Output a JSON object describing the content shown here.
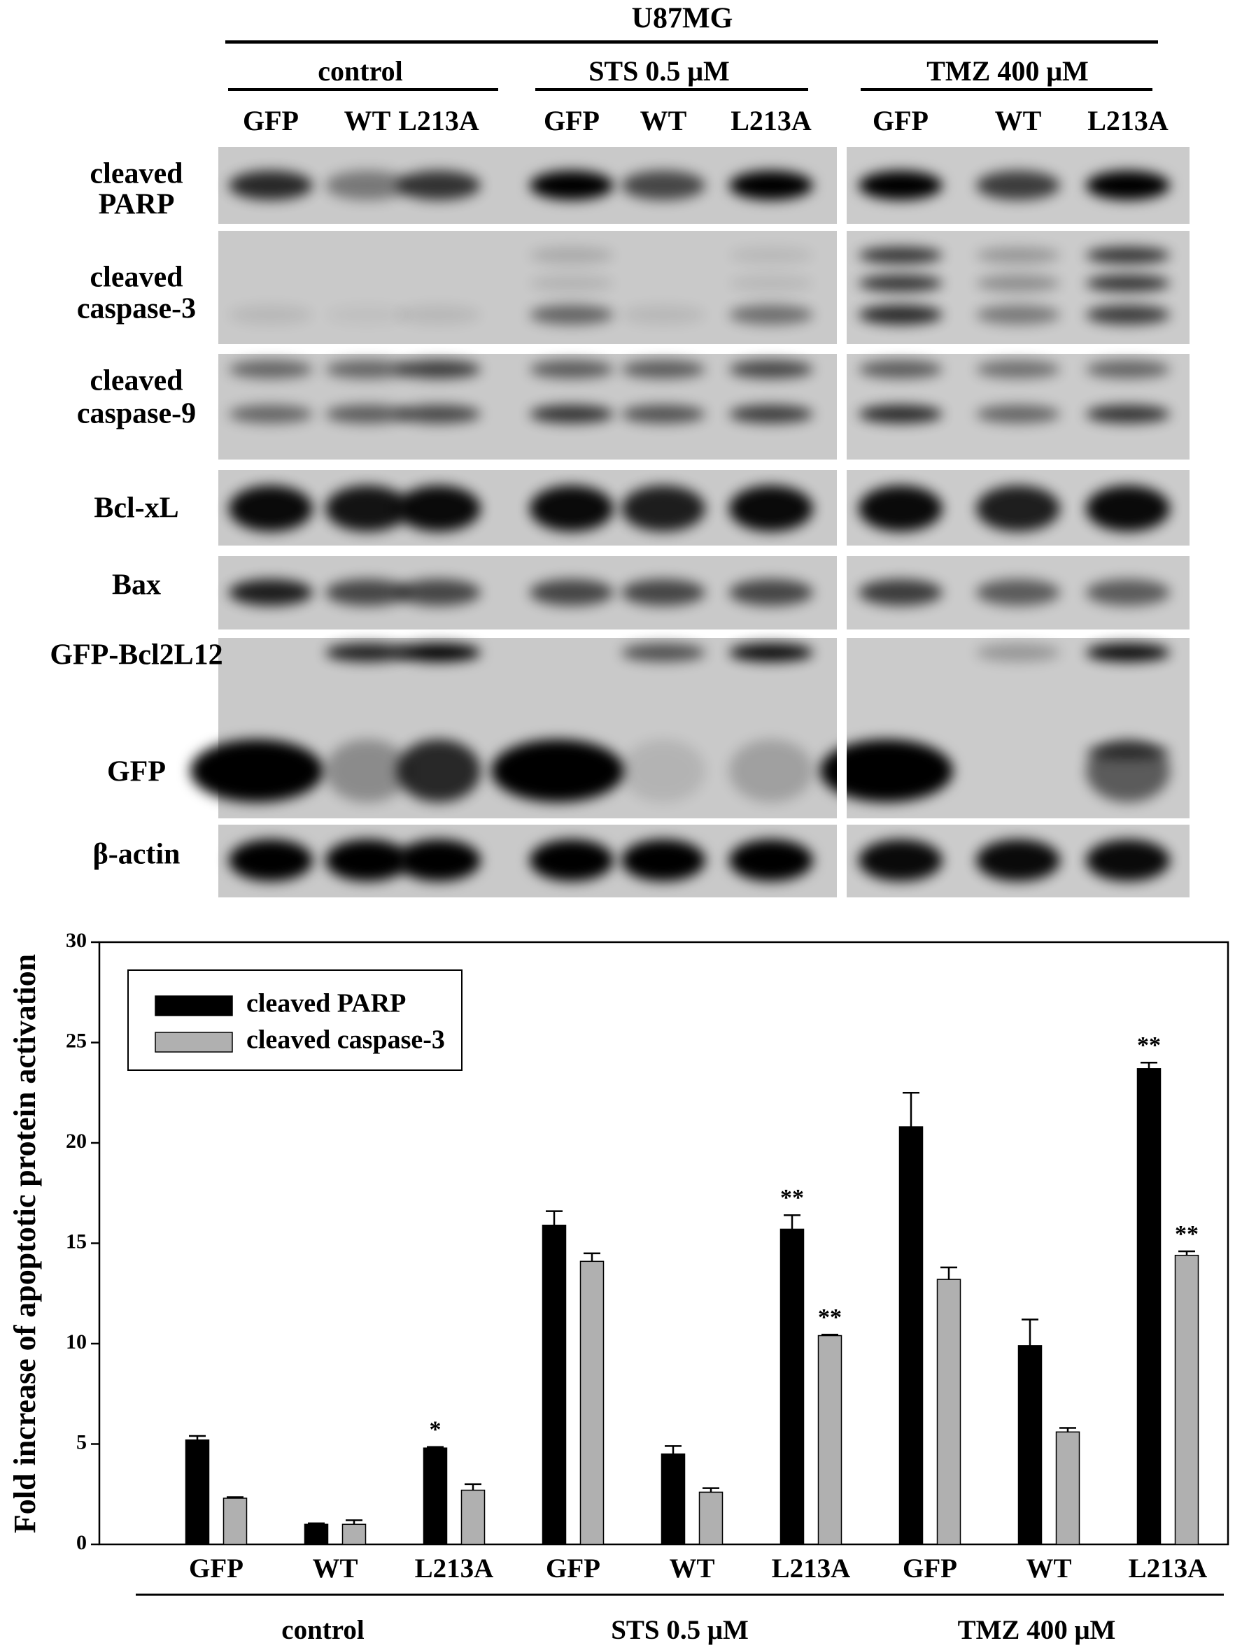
{
  "blot": {
    "cell_line": "U87MG",
    "groups": [
      {
        "name": "control",
        "lanes": [
          "GFP",
          "WT",
          "L213A"
        ]
      },
      {
        "name": "STS 0.5 μM",
        "lanes": [
          "GFP",
          "WT",
          "L213A"
        ]
      },
      {
        "name": "TMZ 400 μM",
        "lanes": [
          "GFP",
          "WT",
          "L213A"
        ]
      }
    ],
    "rows": [
      [
        "cleaved",
        "PARP"
      ],
      [
        "cleaved",
        "caspase-3"
      ],
      [
        "cleaved",
        "caspase-9"
      ],
      [
        "Bcl-xL"
      ],
      [
        "Bax"
      ],
      [
        "GFP-Bcl2L12"
      ],
      [
        "GFP"
      ],
      [
        "β-actin"
      ]
    ]
  },
  "chart_data": {
    "type": "bar",
    "ylabel": "Fold increase of apoptotic protein activation",
    "categories": [
      "GFP",
      "WT",
      "L213A",
      "GFP",
      "WT",
      "L213A",
      "GFP",
      "WT",
      "L213A"
    ],
    "groups": [
      "control",
      "STS 0.5 μM",
      "TMZ 400 μM"
    ],
    "series": [
      {
        "name": "cleaved PARP",
        "color": "#000000",
        "values": [
          5.2,
          1.0,
          4.8,
          15.9,
          4.5,
          15.7,
          20.8,
          9.9,
          23.7
        ],
        "errors": [
          0.2,
          0.05,
          0.05,
          0.7,
          0.4,
          0.7,
          1.7,
          1.3,
          0.3
        ],
        "annotations": [
          null,
          null,
          "*",
          null,
          null,
          "**",
          null,
          null,
          "**"
        ]
      },
      {
        "name": "cleaved caspase-3",
        "color": "#b0b0b0",
        "values": [
          2.3,
          1.0,
          2.7,
          14.1,
          2.6,
          10.4,
          13.2,
          5.6,
          14.4
        ],
        "errors": [
          0.05,
          0.2,
          0.3,
          0.4,
          0.2,
          0.05,
          0.6,
          0.2,
          0.2
        ],
        "annotations": [
          null,
          null,
          null,
          null,
          null,
          "**",
          null,
          null,
          "**"
        ]
      }
    ],
    "ylim": [
      0,
      30
    ],
    "yticks": [
      0,
      5,
      10,
      15,
      20,
      25,
      30
    ],
    "legend": "upper left"
  }
}
